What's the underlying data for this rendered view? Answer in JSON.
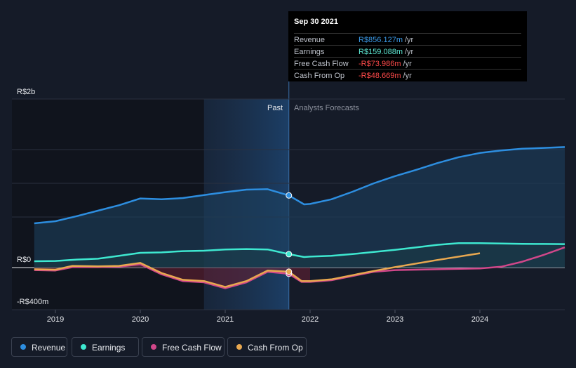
{
  "tooltip": {
    "date": "Sep 30 2021",
    "rows": [
      {
        "label": "Revenue",
        "value": "R$856.127m",
        "unit": "/yr",
        "color": "#3b9ae8"
      },
      {
        "label": "Earnings",
        "value": "R$159.088m",
        "unit": "/yr",
        "color": "#5ee8d4"
      },
      {
        "label": "Free Cash Flow",
        "value": "-R$73.986m",
        "unit": "/yr",
        "color": "#ff4a4a"
      },
      {
        "label": "Cash From Op",
        "value": "-R$48.669m",
        "unit": "/yr",
        "color": "#ff4a4a"
      }
    ]
  },
  "legend": [
    {
      "label": "Revenue",
      "color": "#2d8ee0"
    },
    {
      "label": "Earnings",
      "color": "#3ee8d0"
    },
    {
      "label": "Free Cash Flow",
      "color": "#d1478a"
    },
    {
      "label": "Cash From Op",
      "color": "#e8a850"
    }
  ],
  "chart_data": {
    "type": "line",
    "title": "",
    "xlabel": "",
    "ylabel": "",
    "x_ticks": [
      "2019",
      "2020",
      "2021",
      "2022",
      "2023",
      "2024"
    ],
    "y_tick_labels": {
      "top": "R$2b",
      "zero": "R$0",
      "bottom": "-R$400m"
    },
    "ylim": [
      -400,
      2000
    ],
    "xlim": [
      2018.75,
      2025.0
    ],
    "past_label": "Past",
    "forecast_label": "Analysts Forecasts",
    "divider_x": 2021.75,
    "highlight_start": 2020.75,
    "series": [
      {
        "name": "Revenue",
        "color": "#2d8ee0",
        "points": [
          [
            2018.75,
            525
          ],
          [
            2019.0,
            550
          ],
          [
            2019.25,
            610
          ],
          [
            2019.5,
            675
          ],
          [
            2019.75,
            740
          ],
          [
            2020.0,
            820
          ],
          [
            2020.25,
            810
          ],
          [
            2020.5,
            825
          ],
          [
            2020.75,
            860
          ],
          [
            2021.0,
            895
          ],
          [
            2021.25,
            925
          ],
          [
            2021.5,
            930
          ],
          [
            2021.75,
            856
          ],
          [
            2021.93,
            750
          ],
          [
            2022.0,
            755
          ],
          [
            2022.25,
            810
          ],
          [
            2022.5,
            900
          ],
          [
            2022.75,
            1000
          ],
          [
            2023.0,
            1085
          ],
          [
            2023.25,
            1160
          ],
          [
            2023.5,
            1240
          ],
          [
            2023.75,
            1310
          ],
          [
            2024.0,
            1360
          ],
          [
            2024.25,
            1390
          ],
          [
            2024.5,
            1410
          ],
          [
            2024.75,
            1420
          ],
          [
            2025.0,
            1430
          ]
        ]
      },
      {
        "name": "Earnings",
        "color": "#3ee8d0",
        "points": [
          [
            2018.75,
            75
          ],
          [
            2019.0,
            78
          ],
          [
            2019.25,
            95
          ],
          [
            2019.5,
            105
          ],
          [
            2019.75,
            140
          ],
          [
            2020.0,
            175
          ],
          [
            2020.25,
            180
          ],
          [
            2020.5,
            195
          ],
          [
            2020.75,
            200
          ],
          [
            2021.0,
            215
          ],
          [
            2021.25,
            220
          ],
          [
            2021.5,
            215
          ],
          [
            2021.75,
            159
          ],
          [
            2021.93,
            125
          ],
          [
            2022.0,
            130
          ],
          [
            2022.25,
            140
          ],
          [
            2022.5,
            160
          ],
          [
            2022.75,
            185
          ],
          [
            2023.0,
            210
          ],
          [
            2023.25,
            240
          ],
          [
            2023.5,
            270
          ],
          [
            2023.75,
            290
          ],
          [
            2024.0,
            290
          ],
          [
            2024.25,
            285
          ],
          [
            2024.5,
            282
          ],
          [
            2024.75,
            280
          ],
          [
            2025.0,
            278
          ]
        ]
      },
      {
        "name": "Free Cash Flow",
        "color": "#d1478a",
        "points": [
          [
            2018.75,
            -30
          ],
          [
            2019.0,
            -35
          ],
          [
            2019.2,
            5
          ],
          [
            2019.5,
            5
          ],
          [
            2019.75,
            10
          ],
          [
            2020.0,
            40
          ],
          [
            2020.25,
            -80
          ],
          [
            2020.5,
            -160
          ],
          [
            2020.75,
            -175
          ],
          [
            2021.0,
            -245
          ],
          [
            2021.25,
            -175
          ],
          [
            2021.5,
            -50
          ],
          [
            2021.75,
            -74
          ],
          [
            2021.9,
            -170
          ],
          [
            2022.0,
            -170
          ],
          [
            2022.25,
            -150
          ],
          [
            2022.5,
            -100
          ],
          [
            2022.75,
            -50
          ],
          [
            2023.0,
            -30
          ],
          [
            2023.5,
            -20
          ],
          [
            2024.0,
            -10
          ],
          [
            2024.25,
            10
          ],
          [
            2024.5,
            70
          ],
          [
            2024.75,
            150
          ],
          [
            2025.0,
            240
          ]
        ]
      },
      {
        "name": "Cash From Op",
        "color": "#e8a850",
        "points": [
          [
            2018.75,
            -20
          ],
          [
            2019.0,
            -25
          ],
          [
            2019.2,
            20
          ],
          [
            2019.5,
            15
          ],
          [
            2019.75,
            20
          ],
          [
            2020.0,
            55
          ],
          [
            2020.25,
            -65
          ],
          [
            2020.5,
            -145
          ],
          [
            2020.75,
            -160
          ],
          [
            2021.0,
            -230
          ],
          [
            2021.25,
            -160
          ],
          [
            2021.5,
            -35
          ],
          [
            2021.75,
            -49
          ],
          [
            2021.9,
            -160
          ],
          [
            2022.0,
            -160
          ],
          [
            2022.25,
            -140
          ],
          [
            2022.5,
            -90
          ],
          [
            2022.75,
            -40
          ],
          [
            2023.0,
            5
          ],
          [
            2023.5,
            90
          ],
          [
            2024.0,
            170
          ]
        ]
      }
    ]
  }
}
